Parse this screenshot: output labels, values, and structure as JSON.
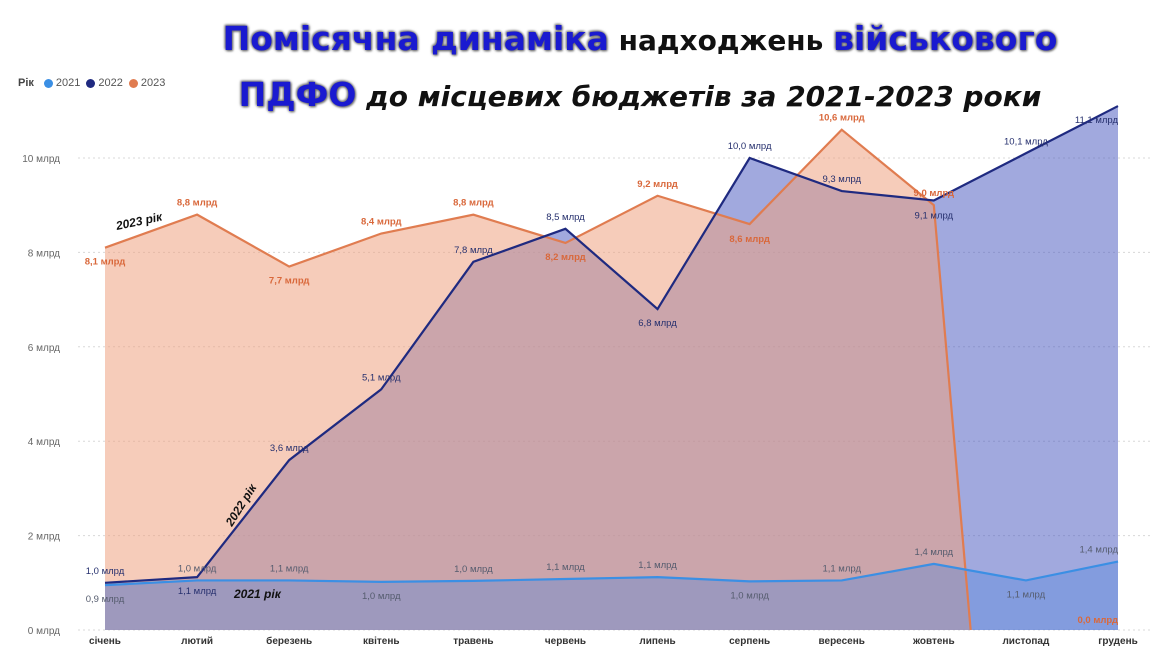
{
  "title": {
    "part1": "Помісячна динаміка",
    "part2": " надходжень ",
    "part3": "військового",
    "part4": "ПДФО",
    "part5": " до місцевих бюджетів за 2021-2023 роки"
  },
  "legend": {
    "title": "Рік",
    "items": [
      "2021",
      "2022",
      "2023"
    ]
  },
  "annotations": {
    "y2021": "2021 рік",
    "y2022": "2022 рік",
    "y2023": "2023 рік"
  },
  "colors": {
    "c2021": "#3b8fe4",
    "c2022": "#1f2a80",
    "c2023": "#e07c50",
    "fill2022": "#4a5bbf",
    "fill2023": "#eea382"
  },
  "chart_data": {
    "type": "area",
    "title": "",
    "xlabel": "",
    "ylabel": "",
    "categories": [
      "січень",
      "лютий",
      "березень",
      "квітень",
      "травень",
      "червень",
      "липень",
      "серпень",
      "вересень",
      "жовтень",
      "листопад",
      "грудень"
    ],
    "yticks": [
      "0 млрд",
      "2 млрд",
      "4 млрд",
      "6 млрд",
      "8 млрд",
      "10 млрд"
    ],
    "ylim": [
      0,
      11.3
    ],
    "grid": true,
    "legend_position": "top-left",
    "series": [
      {
        "name": "2021",
        "values": [
          0.95,
          1.05,
          1.05,
          1.02,
          1.04,
          1.08,
          1.12,
          1.03,
          1.05,
          1.4,
          1.05,
          1.45
        ],
        "labels": [
          "0,9 млрд",
          "1,0 млрд",
          "1,1 млрд",
          "1,0 млрд",
          "1,0 млрд",
          "1,1 млрд",
          "1,1 млрд",
          "1,0 млрд",
          "1,1 млрд",
          "1,4 млрд",
          "1,1 млрд",
          "1,4 млрд"
        ]
      },
      {
        "name": "2022",
        "values": [
          1.0,
          1.12,
          3.6,
          5.1,
          7.8,
          8.5,
          6.8,
          10.0,
          9.3,
          9.1,
          10.1,
          11.1
        ],
        "labels": [
          "1,0 млрд",
          "1,1 млрд",
          "3,6 млрд",
          "5,1 млрд",
          "7,8 млрд",
          "8,5 млрд",
          "6,8 млрд",
          "10,0 млрд",
          "9,3 млрд",
          "9,1 млрд",
          "10,1 млрд",
          "11,1 млрд"
        ]
      },
      {
        "name": "2023",
        "values": [
          8.1,
          8.8,
          7.7,
          8.4,
          8.8,
          8.2,
          9.2,
          8.6,
          10.6,
          9.0,
          0.0,
          0.0
        ],
        "labels": [
          "8,1 млрд",
          "8,8 млрд",
          "7,7 млрд",
          "8,4 млрд",
          "8,8 млрд",
          "8,2 млрд",
          "9,2 млрд",
          "8,6 млрд",
          "10,6 млрд",
          "9,0 млрд",
          "",
          "0,0 млрд"
        ]
      }
    ]
  }
}
